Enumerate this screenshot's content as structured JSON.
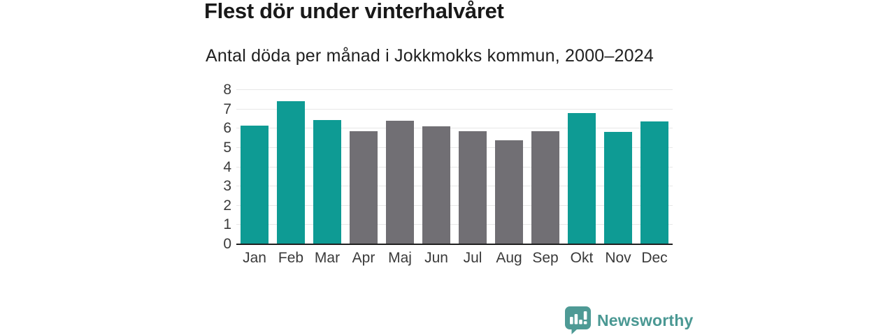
{
  "chart_data": {
    "type": "bar",
    "title": "Flest dör under vinterhalvåret",
    "subtitle": "Antal döda per månad i Jokkmokks kommun, 2000–2024",
    "categories": [
      "Jan",
      "Feb",
      "Mar",
      "Apr",
      "Maj",
      "Jun",
      "Jul",
      "Aug",
      "Sep",
      "Okt",
      "Nov",
      "Dec"
    ],
    "values": [
      6.12,
      7.4,
      6.4,
      5.84,
      6.36,
      6.08,
      5.84,
      5.36,
      5.84,
      6.76,
      5.8,
      6.32
    ],
    "bar_groups": [
      "winter",
      "winter",
      "winter",
      "summer",
      "summer",
      "summer",
      "summer",
      "summer",
      "summer",
      "winter",
      "winter",
      "winter"
    ],
    "colors": {
      "winter": "#0e9b94",
      "summer": "#716f74"
    },
    "ylim": [
      0,
      8
    ],
    "yticks": [
      0,
      1,
      2,
      3,
      4,
      5,
      6,
      7,
      8
    ],
    "xlabel": "",
    "ylabel": "",
    "grid": "horizontal",
    "legend": "none"
  },
  "branding": {
    "logo_text": "Newsworthy",
    "logo_color": "#4a9893",
    "logo_icon": "bar-chart-speech-bubble-icon"
  }
}
